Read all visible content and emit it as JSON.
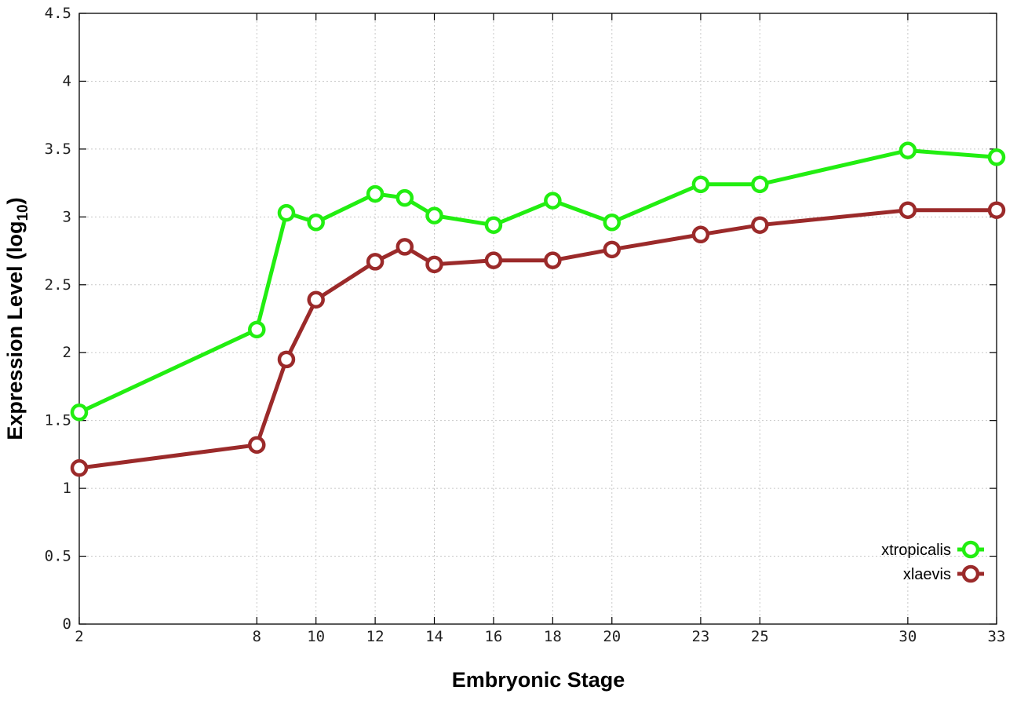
{
  "chart_data": {
    "type": "line",
    "xlabel": "Embryonic Stage",
    "ylabel": "Expression Level (log",
    "ylabel_subscript": "10",
    "ylabel_suffix": ")",
    "x_ticks": [
      "2",
      "8",
      "10",
      "12",
      "14",
      "16",
      "18",
      "20",
      "23",
      "25",
      "30",
      "33"
    ],
    "y_ticks": [
      "0",
      "0.5",
      "1",
      "1.5",
      "2",
      "2.5",
      "3",
      "3.5",
      "4",
      "4.5"
    ],
    "ylim": [
      0,
      4.5
    ],
    "xlim": [
      2,
      33
    ],
    "grid": true,
    "legend_position": "bottom-right",
    "x": [
      2,
      8,
      9,
      10,
      12,
      13,
      14,
      16,
      18,
      20,
      23,
      25,
      30,
      33
    ],
    "series": [
      {
        "name": "xtropicalis",
        "color": "#22ee11",
        "values": [
          1.56,
          2.17,
          3.03,
          2.96,
          3.17,
          3.14,
          3.01,
          2.94,
          3.12,
          2.96,
          3.24,
          3.24,
          3.49,
          3.44
        ]
      },
      {
        "name": "xlaevis",
        "color": "#9b2a2a",
        "values": [
          1.15,
          1.32,
          1.95,
          2.39,
          2.67,
          2.78,
          2.65,
          2.68,
          2.68,
          2.76,
          2.87,
          2.94,
          3.05,
          3.05
        ]
      }
    ]
  }
}
